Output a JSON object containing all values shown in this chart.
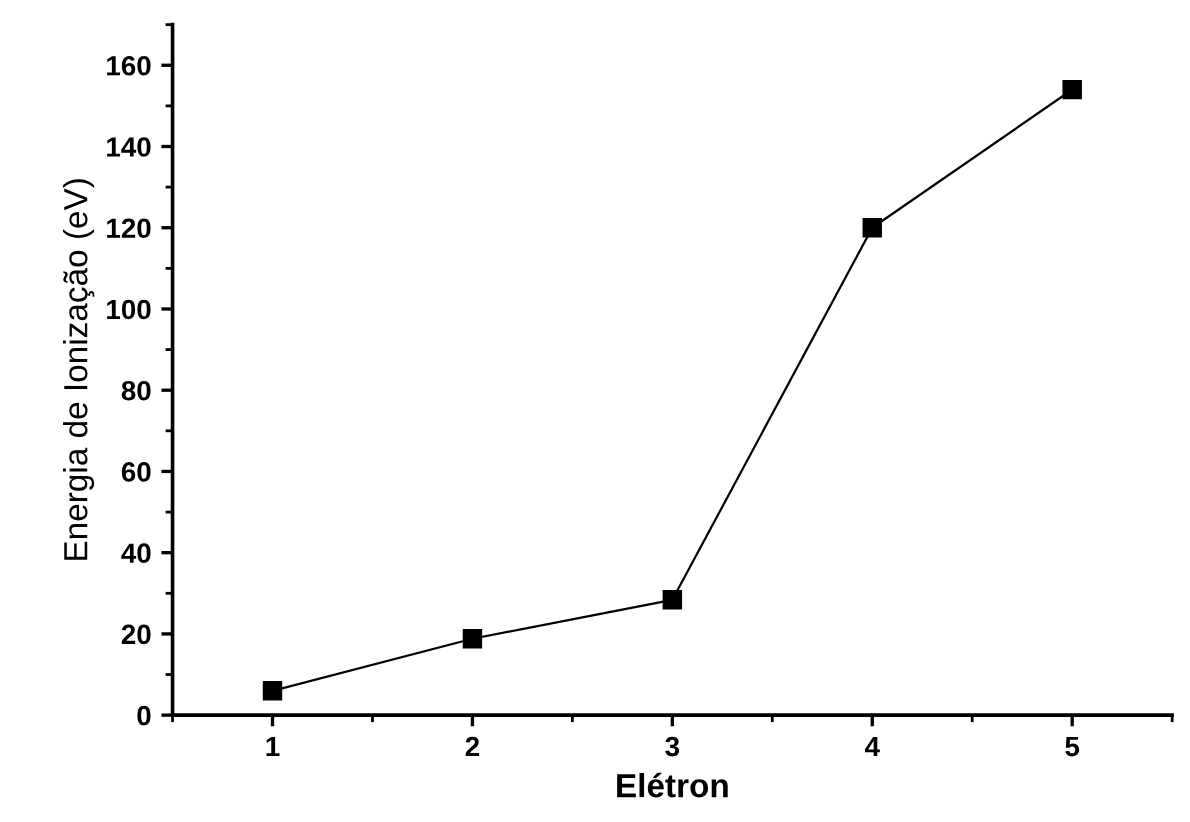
{
  "chart_data": {
    "type": "line",
    "xlabel": "Elétron",
    "ylabel": "Energia de Ionização (eV)",
    "x": [
      1,
      2,
      3,
      4,
      5
    ],
    "series": [
      {
        "color": "#000000",
        "values": [
          6,
          18.8,
          28.4,
          120,
          154
        ]
      }
    ],
    "xlim": [
      0.5,
      5.5
    ],
    "xticks": [
      1,
      2,
      3,
      4,
      5
    ],
    "ylim": [
      0,
      170
    ],
    "yticks": [
      0,
      20,
      40,
      60,
      80,
      100,
      120,
      140,
      160
    ],
    "marker": "square",
    "line_style": "solid",
    "grid": false,
    "legend": false
  }
}
